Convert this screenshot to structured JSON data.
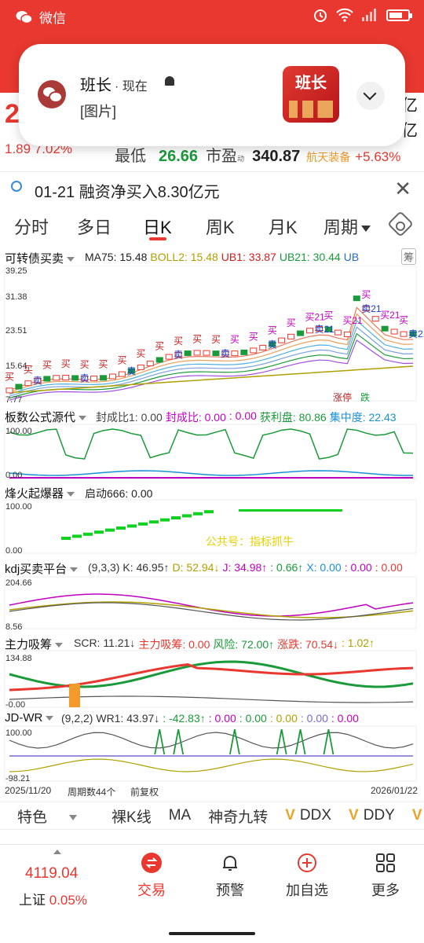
{
  "status": {
    "app": "微信"
  },
  "notification": {
    "title": "班长",
    "time": "· 现在",
    "message": "[图片]",
    "thumb_text": "班长"
  },
  "quote": {
    "price_partial": "2",
    "change": "1.89 7.02%",
    "yi_top": "亿",
    "yi_bottom": "亿",
    "low_label": "最低",
    "low_value": "26.66",
    "pe_label": "市盈",
    "pe_sup": "动",
    "pe_value": "340.87",
    "sector": "航天装备",
    "sector_pct": "+5.63%"
  },
  "news": {
    "text": "01-21 融资净买入8.30亿元"
  },
  "tabs": [
    "分时",
    "多日",
    "日K",
    "周K",
    "月K",
    "周期"
  ],
  "panels": {
    "main": {
      "name": "可转债买卖",
      "vals": [
        {
          "t": "MA75: 15.48",
          "c": "#222"
        },
        {
          "t": "BOLL2: 15.48",
          "c": "#b0a000"
        },
        {
          "t": "UB1: 33.87",
          "c": "#d02020"
        },
        {
          "t": "UB21: 30.44",
          "c": "#1a9a3a"
        },
        {
          "t": "UB",
          "c": "#2a6ad0"
        }
      ],
      "axis": [
        "39.25",
        "31.38",
        "23.51",
        "15.64",
        "7.77"
      ],
      "badge": "筹",
      "tags": {
        "up": "涨停",
        "down": "跌"
      },
      "sig": {
        "buy": "买",
        "sell": "卖",
        "b21": "买21",
        "s21": "卖21"
      }
    },
    "p2": {
      "name": "板数公式源代",
      "vals": [
        {
          "t": "封成比1: 0.00",
          "c": "#444"
        },
        {
          "t": "封成比: 0.00",
          "c": "#c000c0"
        },
        {
          "t": ": 0.00",
          "c": "#c000c0"
        },
        {
          "t": "获利盘: 80.86",
          "c": "#1a9a3a"
        },
        {
          "t": "集中度: 22.43",
          "c": "#1a90d0"
        }
      ],
      "axis": [
        "100.00",
        "0.00"
      ]
    },
    "p3": {
      "name": "烽火起爆器",
      "vals": [
        {
          "t": "启动666: 0.00",
          "c": "#222"
        }
      ],
      "axis": [
        "100.00",
        "0.00"
      ],
      "watermark": "公共号：指标抓牛"
    },
    "p4": {
      "name": "kdj买卖平台",
      "vals": [
        {
          "t": "(9,3,3) K: 46.95↑",
          "c": "#333"
        },
        {
          "t": "D: 52.94↓",
          "c": "#b0a000"
        },
        {
          "t": "J: 34.98↑",
          "c": "#c000c0"
        },
        {
          "t": ": 0.66↑",
          "c": "#1a9a3a"
        },
        {
          "t": "X: 0.00",
          "c": "#1a90d0"
        },
        {
          "t": ": 0.00",
          "c": "#c000c0"
        },
        {
          "t": ": 0.00",
          "c": "#e8382f"
        }
      ],
      "axis": [
        "204.66",
        "8.56"
      ]
    },
    "p5": {
      "name": "主力吸筹",
      "vals": [
        {
          "t": "SCR: 11.21↓",
          "c": "#333"
        },
        {
          "t": "主力吸筹: 0.00",
          "c": "#e8382f"
        },
        {
          "t": "风险: 72.00↑",
          "c": "#1a9a3a"
        },
        {
          "t": "涨跌: 70.54↓",
          "c": "#e8382f"
        },
        {
          "t": ": 1.02↑",
          "c": "#b0a000"
        }
      ],
      "axis": [
        "134.88",
        "-0.00"
      ]
    },
    "p6": {
      "name": "JD-WR",
      "vals": [
        {
          "t": "(9,2,2) WR1: 43.97↓",
          "c": "#333"
        },
        {
          "t": ": -42.83↑",
          "c": "#1a9a3a"
        },
        {
          "t": ": 0.00",
          "c": "#c000c0"
        },
        {
          "t": ": 0.00",
          "c": "#1a9a3a"
        },
        {
          "t": ": 0.00",
          "c": "#b0a000"
        },
        {
          "t": ": 0.00",
          "c": "#7a6ad0"
        },
        {
          "t": ": 0.00",
          "c": "#c000c0"
        }
      ],
      "axis": [
        "100.00",
        "-98.21"
      ]
    }
  },
  "datebar": {
    "start": "2025/11/20",
    "period": "周期数44个",
    "adj": "前复权",
    "end": "2026/01/22"
  },
  "features": [
    "特色",
    "裸K线",
    "MA",
    "神奇九转",
    "DDX",
    "DDY"
  ],
  "feature_v": "V",
  "bottom": {
    "index_value": "4119.04",
    "index_name": "上证",
    "index_pct": "0.05%",
    "buttons": [
      "交易",
      "预警",
      "加自选",
      "更多"
    ]
  }
}
